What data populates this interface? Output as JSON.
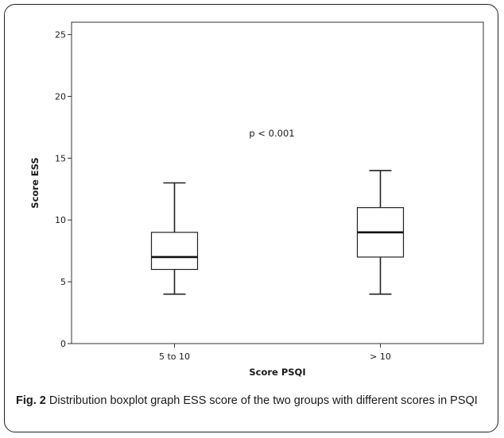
{
  "chart_data": {
    "type": "boxplot",
    "xlabel": "Score PSQI",
    "ylabel": "Score ESS",
    "ylim": [
      0,
      26
    ],
    "yticks": [
      0,
      5,
      10,
      15,
      20,
      25
    ],
    "categories": [
      "5 to 10",
      "> 10"
    ],
    "boxes": [
      {
        "category": "5 to 10",
        "min": 4,
        "q1": 6,
        "median": 7,
        "q3": 9,
        "max": 13
      },
      {
        "category": "> 10",
        "min": 4,
        "q1": 7,
        "median": 9,
        "q3": 11,
        "max": 14
      }
    ],
    "annotation": "p < 0.001",
    "grid": false
  },
  "caption": {
    "label": "Fig. 2",
    "text": " Distribution boxplot graph ESS score of the two groups with different scores in PSQI"
  }
}
